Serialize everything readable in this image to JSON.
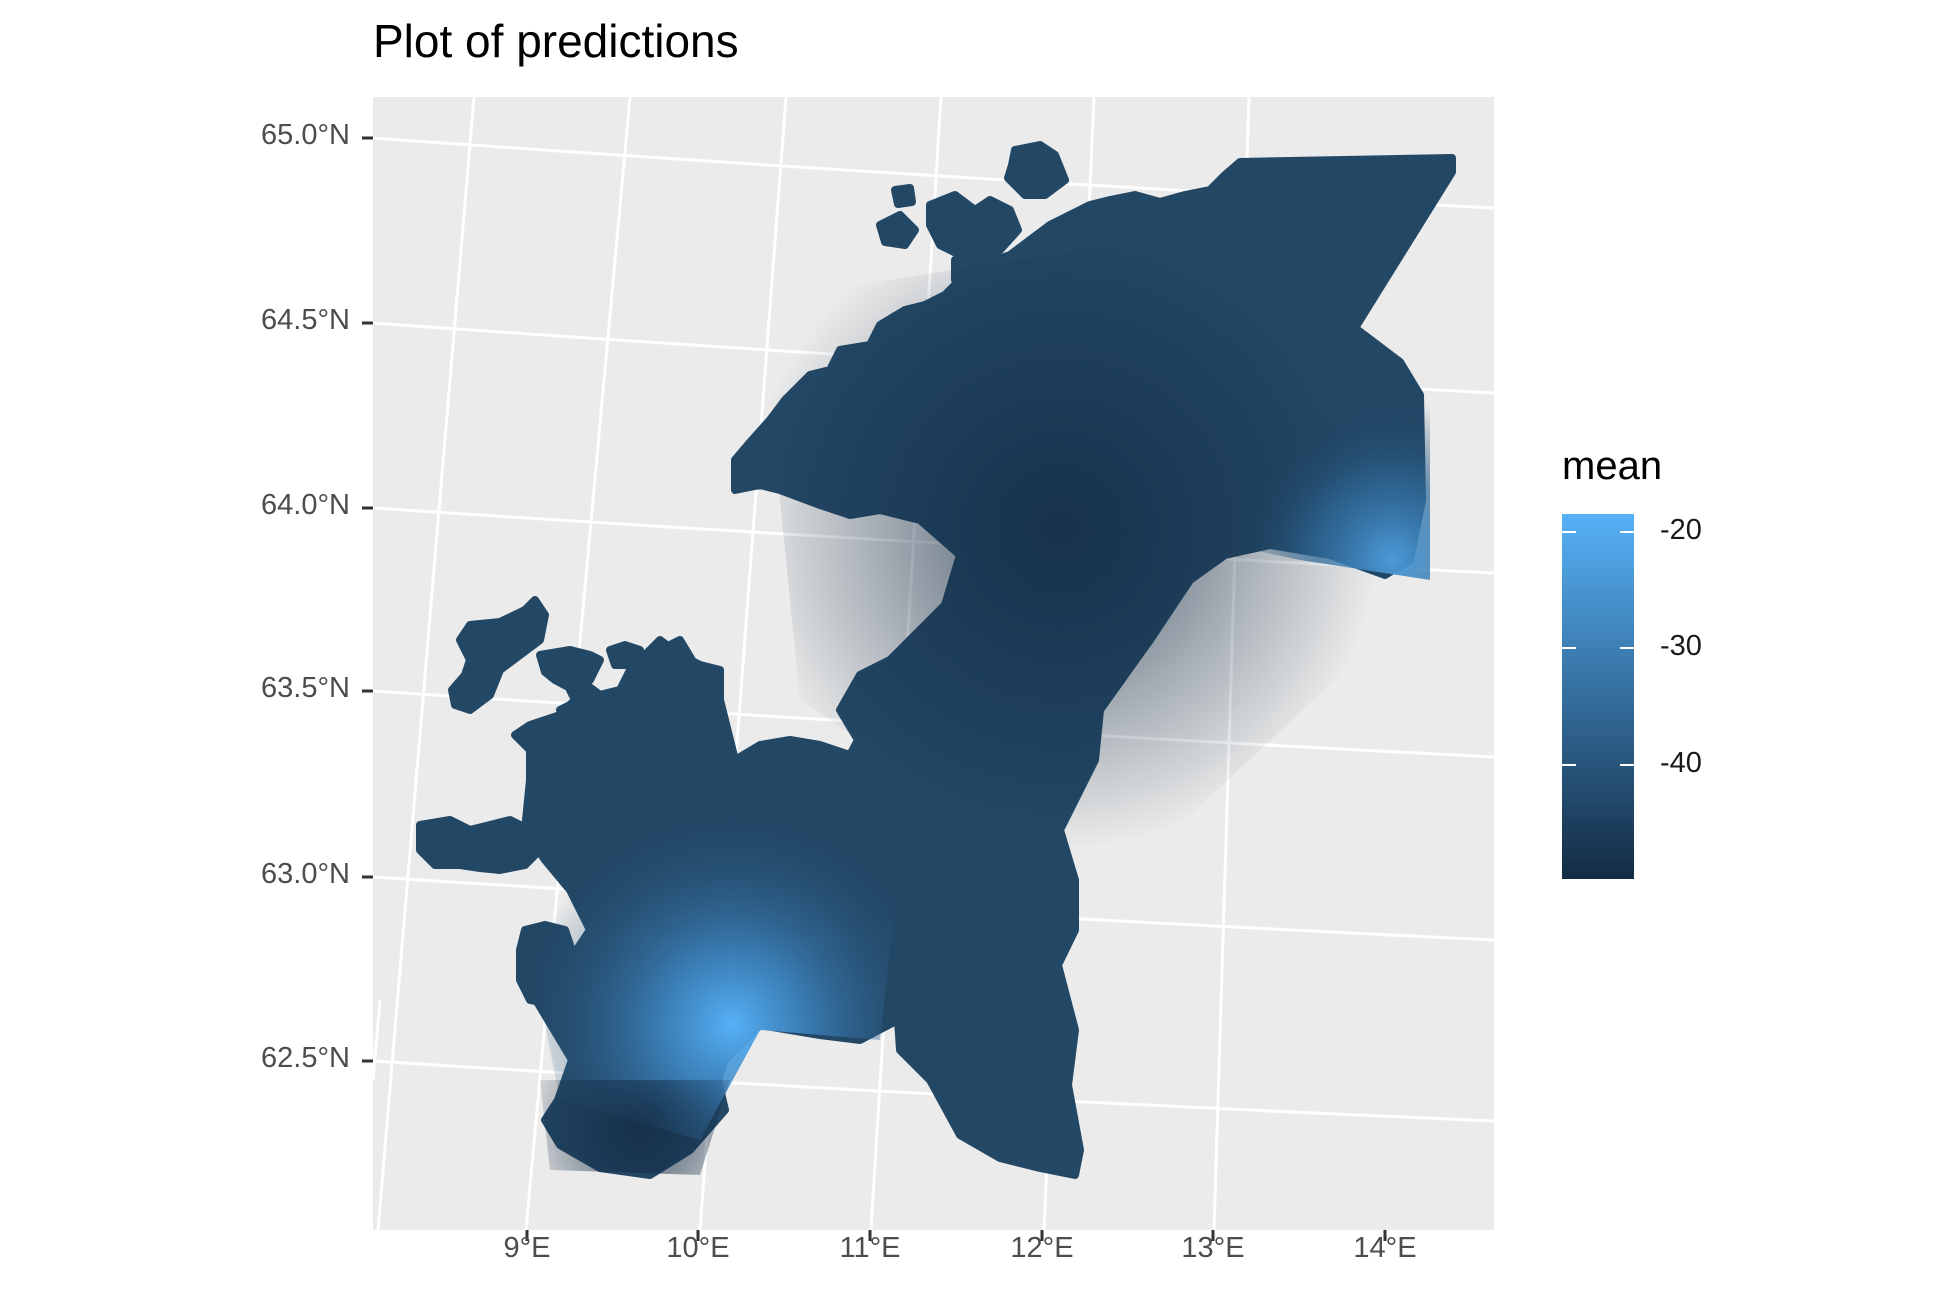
{
  "title": "Plot of predictions",
  "chart_data": {
    "type": "heatmap",
    "title": "Plot of predictions",
    "xlabel": "",
    "ylabel": "",
    "x_ticks": [
      "9°E",
      "10°E",
      "11°E",
      "12°E",
      "13°E",
      "14°E"
    ],
    "y_ticks": [
      "65.0°N",
      "64.5°N",
      "64.0°N",
      "63.5°N",
      "63.0°N",
      "62.5°N"
    ],
    "grid": true,
    "fill_variable": "mean",
    "legend": {
      "title": "mean",
      "placement": "right",
      "ticks": [
        "-20",
        "-30",
        "-40"
      ],
      "range": [
        -50,
        -18
      ],
      "color_low": "#132B43",
      "color_high": "#56B1F7"
    },
    "background_color": "#EBEBEB",
    "gridline_color": "#FFFFFF"
  }
}
